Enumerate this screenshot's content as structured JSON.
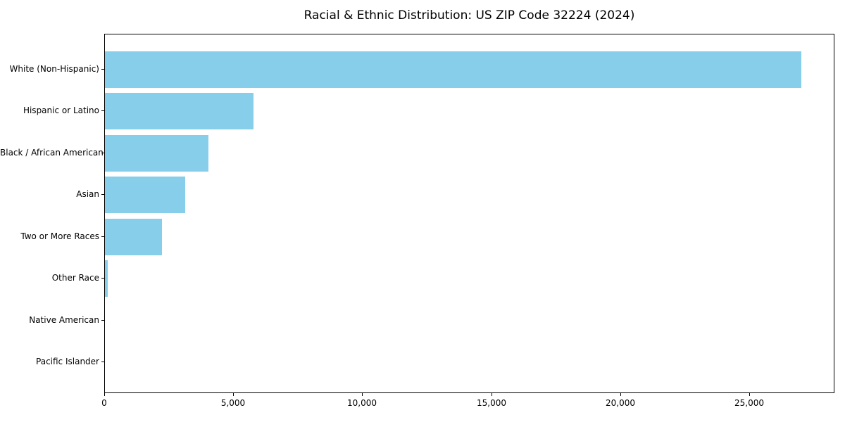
{
  "chart_data": {
    "type": "bar",
    "orientation": "horizontal",
    "title": "Racial & Ethnic Distribution: US ZIP Code 32224 (2024)",
    "categories": [
      "White (Non-Hispanic)",
      "Hispanic or Latino",
      "Black / African American",
      "Asian",
      "Two or More Races",
      "Other Race",
      "Native American",
      "Pacific Islander"
    ],
    "values": [
      27000,
      5750,
      4000,
      3100,
      2200,
      100,
      0,
      0
    ],
    "xlabel": "",
    "ylabel": "",
    "xlim": [
      0,
      28300
    ],
    "x_ticks": [
      0,
      5000,
      10000,
      15000,
      20000,
      25000
    ],
    "x_tick_labels": [
      "0",
      "5,000",
      "10,000",
      "15,000",
      "20,000",
      "25,000"
    ],
    "bar_color": "#87CEEB",
    "spine_color": "#000000",
    "background_color": "#ffffff",
    "grid": false,
    "legend": null
  }
}
